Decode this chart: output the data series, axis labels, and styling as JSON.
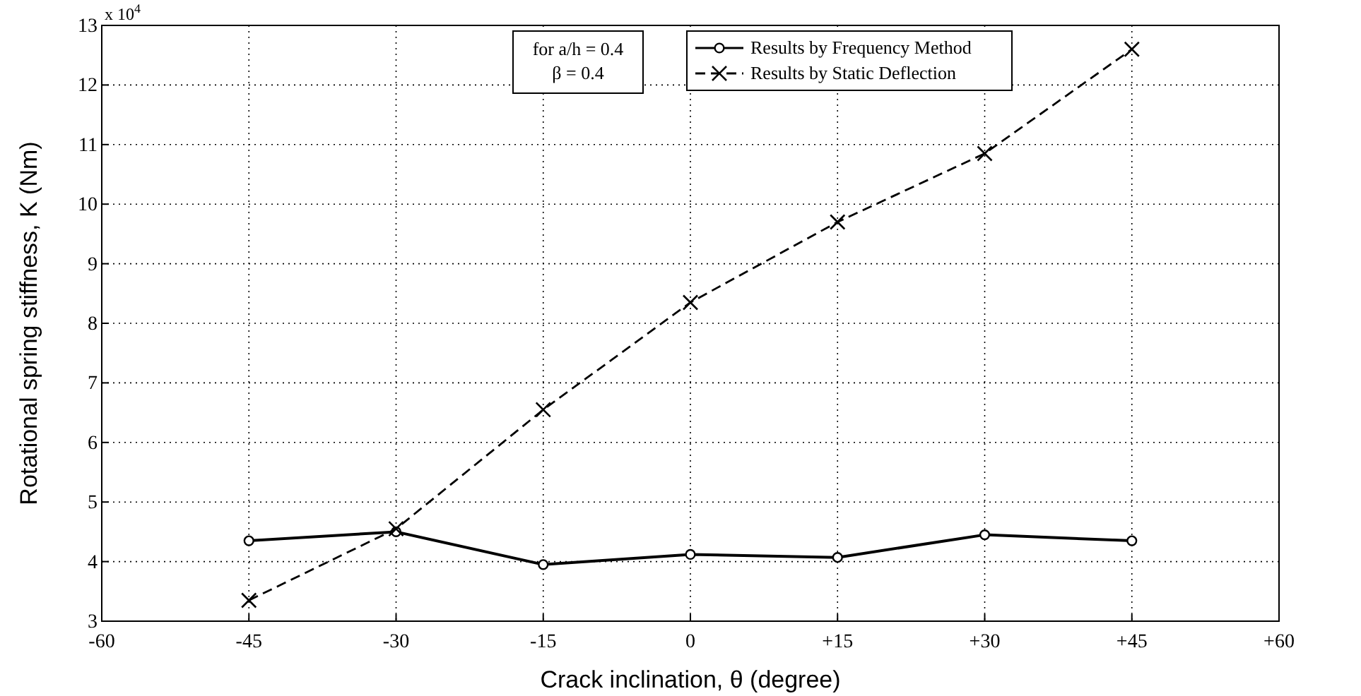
{
  "chart_data": {
    "type": "line",
    "xlabel": "Crack inclination, θ (degree)",
    "ylabel": "Rotational spring stiffness, K (Nm)",
    "x": [
      -45,
      -30,
      -15,
      0,
      15,
      30,
      45
    ],
    "series": [
      {
        "name": "Results by Frequency Method",
        "color": "#000000",
        "marker": "circle",
        "line_style": "solid",
        "values": [
          4.35,
          4.5,
          3.95,
          4.12,
          4.07,
          4.45,
          4.35
        ]
      },
      {
        "name": "Results by Static Deflection",
        "color": "#000000",
        "marker": "cross",
        "line_style": "dashed",
        "values": [
          3.35,
          4.55,
          6.55,
          8.35,
          9.7,
          10.85,
          12.6
        ]
      }
    ],
    "xlim": [
      -60,
      60
    ],
    "xticks": [
      -60,
      -45,
      -30,
      -15,
      0,
      {
        "value": 15,
        "label": "+15"
      },
      {
        "value": 30,
        "label": "+30"
      },
      {
        "value": 45,
        "label": "+45"
      },
      {
        "value": 60,
        "label": "+60"
      }
    ],
    "ylim": [
      3,
      13
    ],
    "yticks": [
      3,
      4,
      5,
      6,
      7,
      8,
      9,
      10,
      11,
      12,
      13
    ],
    "annotations": [
      "x 10$^{4}$",
      "for a/h = 0.4",
      "β = 0.4"
    ],
    "grid": true,
    "legend": "top right"
  }
}
